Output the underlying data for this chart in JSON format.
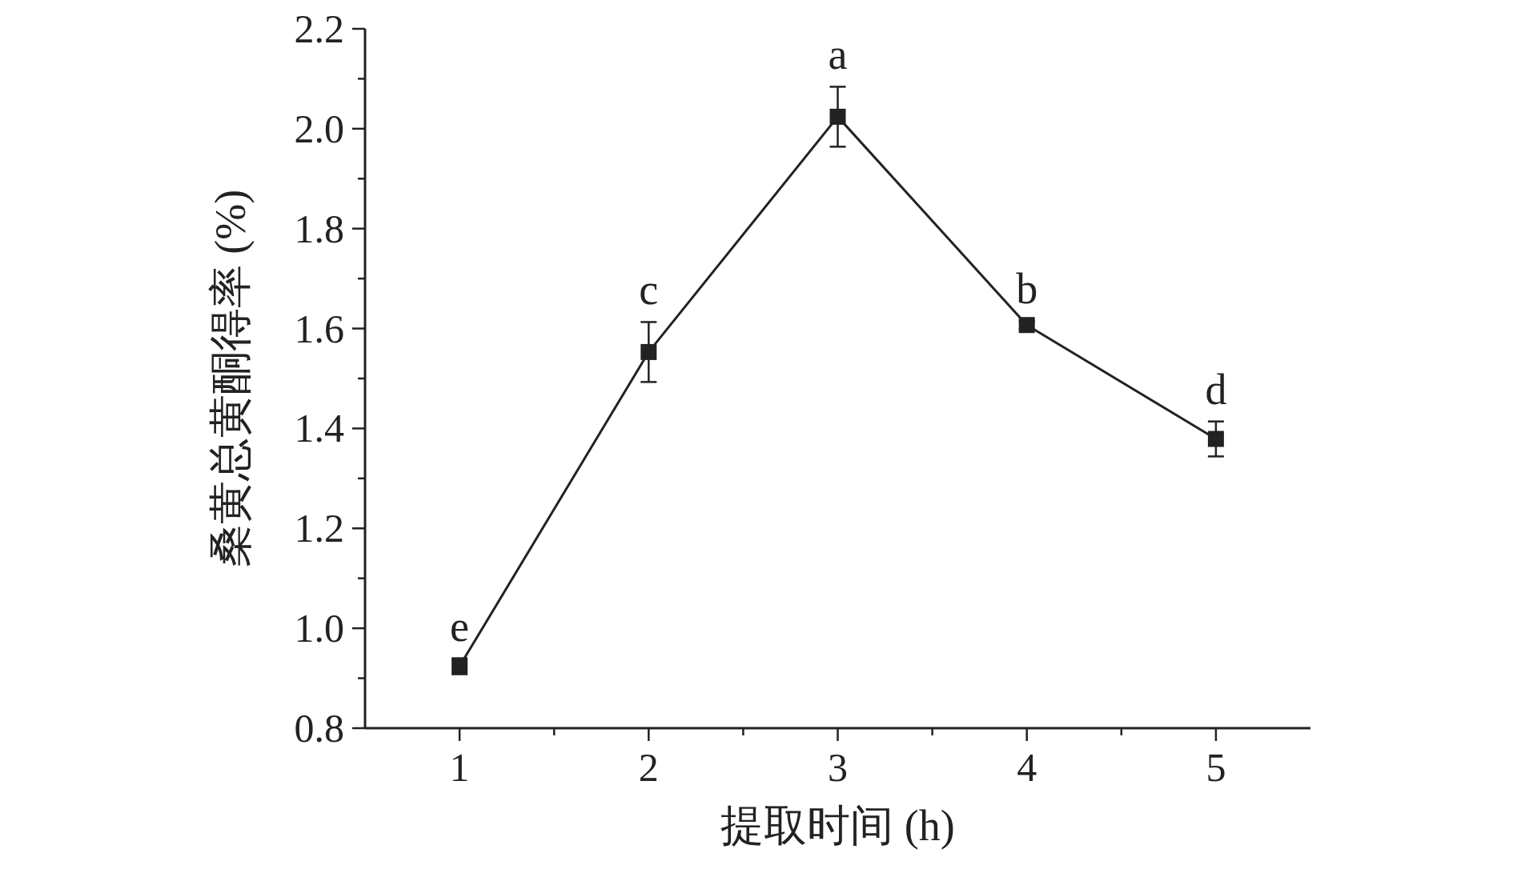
{
  "chart_data": {
    "type": "line",
    "xlabel": "提取时间 (h)",
    "ylabel": "桑黄总黄酮得率 (%)",
    "x": [
      1,
      2,
      3,
      4,
      5
    ],
    "series": [
      {
        "color": "#222222",
        "values": [
          0.924,
          1.553,
          2.024,
          1.607,
          1.379
        ],
        "errors": [
          0.016,
          0.06,
          0.06,
          0.008,
          0.035
        ]
      }
    ],
    "marker": "square",
    "line_style": "solid",
    "grid": false,
    "xlim": [
      0.5,
      5.5
    ],
    "xticks": [
      1,
      {
        "value": 1.5,
        "label": null
      },
      2,
      {
        "value": 2.5,
        "label": null
      },
      3,
      {
        "value": 3.5,
        "label": null
      },
      4,
      {
        "value": 4.5,
        "label": null
      },
      5
    ],
    "ylim": [
      0.8,
      2.2
    ],
    "yticks": [
      0.8,
      {
        "value": 0.9,
        "label": null
      },
      {
        "value": 1.0,
        "label": "1.0"
      },
      {
        "value": 1.1,
        "label": null
      },
      1.2,
      {
        "value": 1.3,
        "label": null
      },
      1.4,
      {
        "value": 1.5,
        "label": null
      },
      1.6,
      {
        "value": 1.7,
        "label": null
      },
      1.8,
      {
        "value": 1.9,
        "label": null
      },
      {
        "value": 2.0,
        "label": "2.0"
      },
      {
        "value": 2.1,
        "label": null
      },
      2.2
    ],
    "annotations": [
      {
        "text": "e",
        "x": 1,
        "y": 0.924
      },
      {
        "text": "c",
        "x": 2,
        "y": 1.553
      },
      {
        "text": "a",
        "x": 3,
        "y": 2.024
      },
      {
        "text": "b",
        "x": 4,
        "y": 1.607
      },
      {
        "text": "d",
        "x": 5,
        "y": 1.379
      }
    ]
  }
}
